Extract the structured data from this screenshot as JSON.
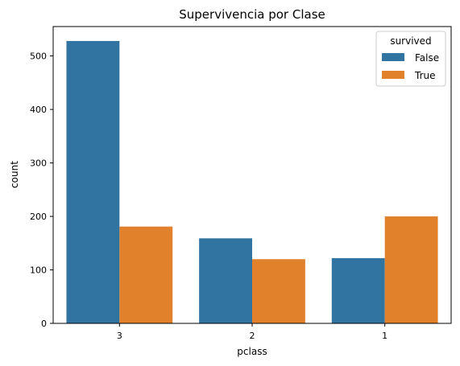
{
  "chart_data": {
    "type": "bar",
    "title": "Supervivencia por Clase",
    "xlabel": "pclass",
    "ylabel": "count",
    "categories": [
      "3",
      "2",
      "1"
    ],
    "series": [
      {
        "name": "False",
        "color": "#3274a1",
        "values": [
          528,
          159,
          122
        ]
      },
      {
        "name": "True",
        "color": "#e1812c",
        "values": [
          181,
          120,
          200
        ]
      }
    ],
    "ylim": [
      0,
      555
    ],
    "yticks": [
      0,
      100,
      200,
      300,
      400,
      500
    ],
    "grid": false,
    "legend": {
      "title": "survived",
      "placement": "top-right"
    }
  }
}
